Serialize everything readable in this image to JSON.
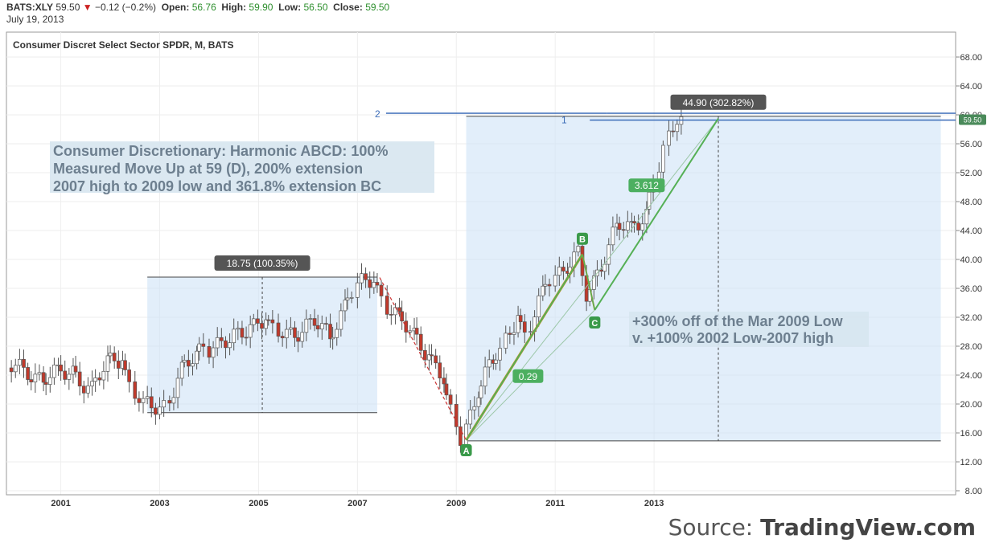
{
  "header": {
    "symbol": "BATS:XLY",
    "last": "59.50",
    "change": "−0.12 (−0.2%)",
    "open_label": "Open:",
    "open": "56.76",
    "high_label": "High:",
    "high": "59.90",
    "low_label": "Low:",
    "low": "56.50",
    "close_label": "Close:",
    "close": "59.50",
    "date": "July 19, 2013",
    "down_icon": "down-triangle-icon"
  },
  "chart_data": {
    "type": "candlestick",
    "title": "Consumer Discret Select Sector SPDR, M, BATS",
    "x_ticks": [
      "2001",
      "2003",
      "2005",
      "2007",
      "2009",
      "2011",
      "2013"
    ],
    "y_ticks": [
      "68.00",
      "64.00",
      "60.00",
      "56.00",
      "52.00",
      "48.00",
      "44.00",
      "40.00",
      "36.00",
      "32.00",
      "28.00",
      "24.00",
      "20.00",
      "16.00",
      "12.00",
      "8.00"
    ],
    "ylim": [
      8,
      68
    ],
    "xlim": [
      1999.9,
      2019.1
    ],
    "last_price_label": "59.50",
    "price_line_labels": [
      "1",
      "2"
    ],
    "points": {
      "A": [
        2009.2,
        15
      ],
      "B": [
        2011.55,
        40.7
      ],
      "C": [
        2011.8,
        33
      ],
      "D": [
        2014.3,
        59.5
      ]
    },
    "point_labels": {
      "A": "A",
      "B": "B",
      "C": "C"
    },
    "ratio_labels": [
      "0.29",
      "3.612"
    ],
    "measure_boxes": [
      {
        "label": "18.75 (100.35%)",
        "x0": 2002.75,
        "x1": 2007.4,
        "low": 18.8,
        "high": 37.55
      },
      {
        "label": "44.90 (302.82%)",
        "x0": 2009.2,
        "x1": 2018.8,
        "low": 14.9,
        "high": 59.8
      }
    ],
    "annotations": [
      "Consumer Discretionary:  Harmonic ABCD: 100%",
      "Measured Move Up at 59 (D), 200% extension",
      "2007 high to 2009 low and 361.8% extension BC",
      "+300% off of the Mar 2009 Low",
      "v. +100% 2002 Low-2007 high"
    ],
    "close_series": [
      {
        "t": 2000.0,
        "c": 25.0
      },
      {
        "t": 2000.4,
        "c": 24.8
      },
      {
        "t": 2000.7,
        "c": 23.4
      },
      {
        "t": 2001.0,
        "c": 24.1
      },
      {
        "t": 2001.3,
        "c": 24.7
      },
      {
        "t": 2001.7,
        "c": 21.7
      },
      {
        "t": 2002.0,
        "c": 25.7
      },
      {
        "t": 2002.3,
        "c": 26.9
      },
      {
        "t": 2002.5,
        "c": 22.3
      },
      {
        "t": 2002.75,
        "c": 19.5
      },
      {
        "t": 2003.2,
        "c": 20.0
      },
      {
        "t": 2003.5,
        "c": 24.2
      },
      {
        "t": 2003.8,
        "c": 26.7
      },
      {
        "t": 2004.0,
        "c": 28.1
      },
      {
        "t": 2004.5,
        "c": 28.4
      },
      {
        "t": 2004.9,
        "c": 31.1
      },
      {
        "t": 2005.2,
        "c": 31.8
      },
      {
        "t": 2005.4,
        "c": 29.6
      },
      {
        "t": 2005.8,
        "c": 30.1
      },
      {
        "t": 2006.2,
        "c": 31.2
      },
      {
        "t": 2006.5,
        "c": 29.3
      },
      {
        "t": 2006.8,
        "c": 33.9
      },
      {
        "t": 2007.0,
        "c": 35.7
      },
      {
        "t": 2007.4,
        "c": 37.3
      },
      {
        "t": 2007.6,
        "c": 34.7
      },
      {
        "t": 2007.9,
        "c": 31.6
      },
      {
        "t": 2008.2,
        "c": 29.3
      },
      {
        "t": 2008.5,
        "c": 27.2
      },
      {
        "t": 2008.8,
        "c": 23.2
      },
      {
        "t": 2009.0,
        "c": 18.3
      },
      {
        "t": 2009.2,
        "c": 15.4
      },
      {
        "t": 2009.5,
        "c": 22.2
      },
      {
        "t": 2009.8,
        "c": 25.7
      },
      {
        "t": 2010.0,
        "c": 27.6
      },
      {
        "t": 2010.3,
        "c": 32.9
      },
      {
        "t": 2010.5,
        "c": 29.1
      },
      {
        "t": 2010.8,
        "c": 35.1
      },
      {
        "t": 2011.0,
        "c": 37.6
      },
      {
        "t": 2011.3,
        "c": 39.3
      },
      {
        "t": 2011.55,
        "c": 40.3
      },
      {
        "t": 2011.7,
        "c": 34.9
      },
      {
        "t": 2011.85,
        "c": 36.9
      },
      {
        "t": 2012.0,
        "c": 39.7
      },
      {
        "t": 2012.3,
        "c": 44.6
      },
      {
        "t": 2012.6,
        "c": 44.0
      },
      {
        "t": 2012.9,
        "c": 46.7
      },
      {
        "t": 2013.1,
        "c": 50.8
      },
      {
        "t": 2013.3,
        "c": 54.9
      },
      {
        "t": 2013.55,
        "c": 59.5
      }
    ]
  },
  "footer": {
    "source_prefix": "Source:",
    "source_name": "TradingView.com"
  }
}
